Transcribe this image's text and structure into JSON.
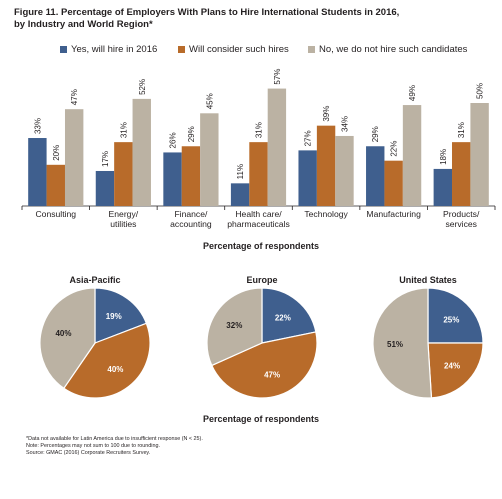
{
  "title_lines": [
    "Figure 11. Percentage of Employers With Plans to Hire International Students in 2016,",
    "by Industry and World Region*"
  ],
  "colors": {
    "yes": "#3f5f8e",
    "consider": "#b86b2a",
    "no": "#bbb2a3"
  },
  "chart_data": [
    {
      "type": "bar",
      "categories": [
        "Consulting",
        "Energy/\nutilities",
        "Finance/\naccounting",
        "Health care/\npharmaceuticals",
        "Technology",
        "Manufacturing",
        "Products/\nservices"
      ],
      "series": [
        {
          "name": "Yes, will hire in 2016",
          "values": [
            33,
            17,
            26,
            11,
            27,
            29,
            18
          ],
          "labels": [
            "33%",
            "17%",
            "26%",
            "11%",
            "27%",
            "29%",
            "18%"
          ]
        },
        {
          "name": "Will consider such hires",
          "values": [
            20,
            31,
            29,
            31,
            39,
            22,
            31
          ],
          "labels": [
            "20%",
            "31%",
            "29%",
            "31%",
            "39%",
            "22%",
            "31%"
          ]
        },
        {
          "name": "No, we do not hire such candidates",
          "values": [
            47,
            52,
            45,
            57,
            34,
            49,
            50
          ],
          "labels": [
            "47%",
            "52%",
            "45%",
            "57%",
            "34%",
            "49%",
            "50%"
          ]
        }
      ],
      "xlabel": "Percentage of respondents",
      "ylim": [
        0,
        60
      ],
      "legend": "top"
    },
    {
      "type": "pie",
      "title": "Asia-Pacific",
      "values": [
        19,
        40,
        40
      ],
      "labels": [
        "19%",
        "40%",
        "40%"
      ]
    },
    {
      "type": "pie",
      "title": "Europe",
      "values": [
        22,
        47,
        32
      ],
      "labels": [
        "22%",
        "47%",
        "32%"
      ]
    },
    {
      "type": "pie",
      "title": "United States",
      "values": [
        25,
        24,
        51
      ],
      "labels": [
        "25%",
        "24%",
        "51%"
      ]
    }
  ],
  "pies_xlabel": "Percentage of respondents",
  "notes": [
    "*Data not available for Latin America due to insufficient response (N < 25).",
    "Note: Percentages may not sum to 100 due to rounding.",
    "Source: GMAC (2016) Corporate Recruiters Survey."
  ]
}
